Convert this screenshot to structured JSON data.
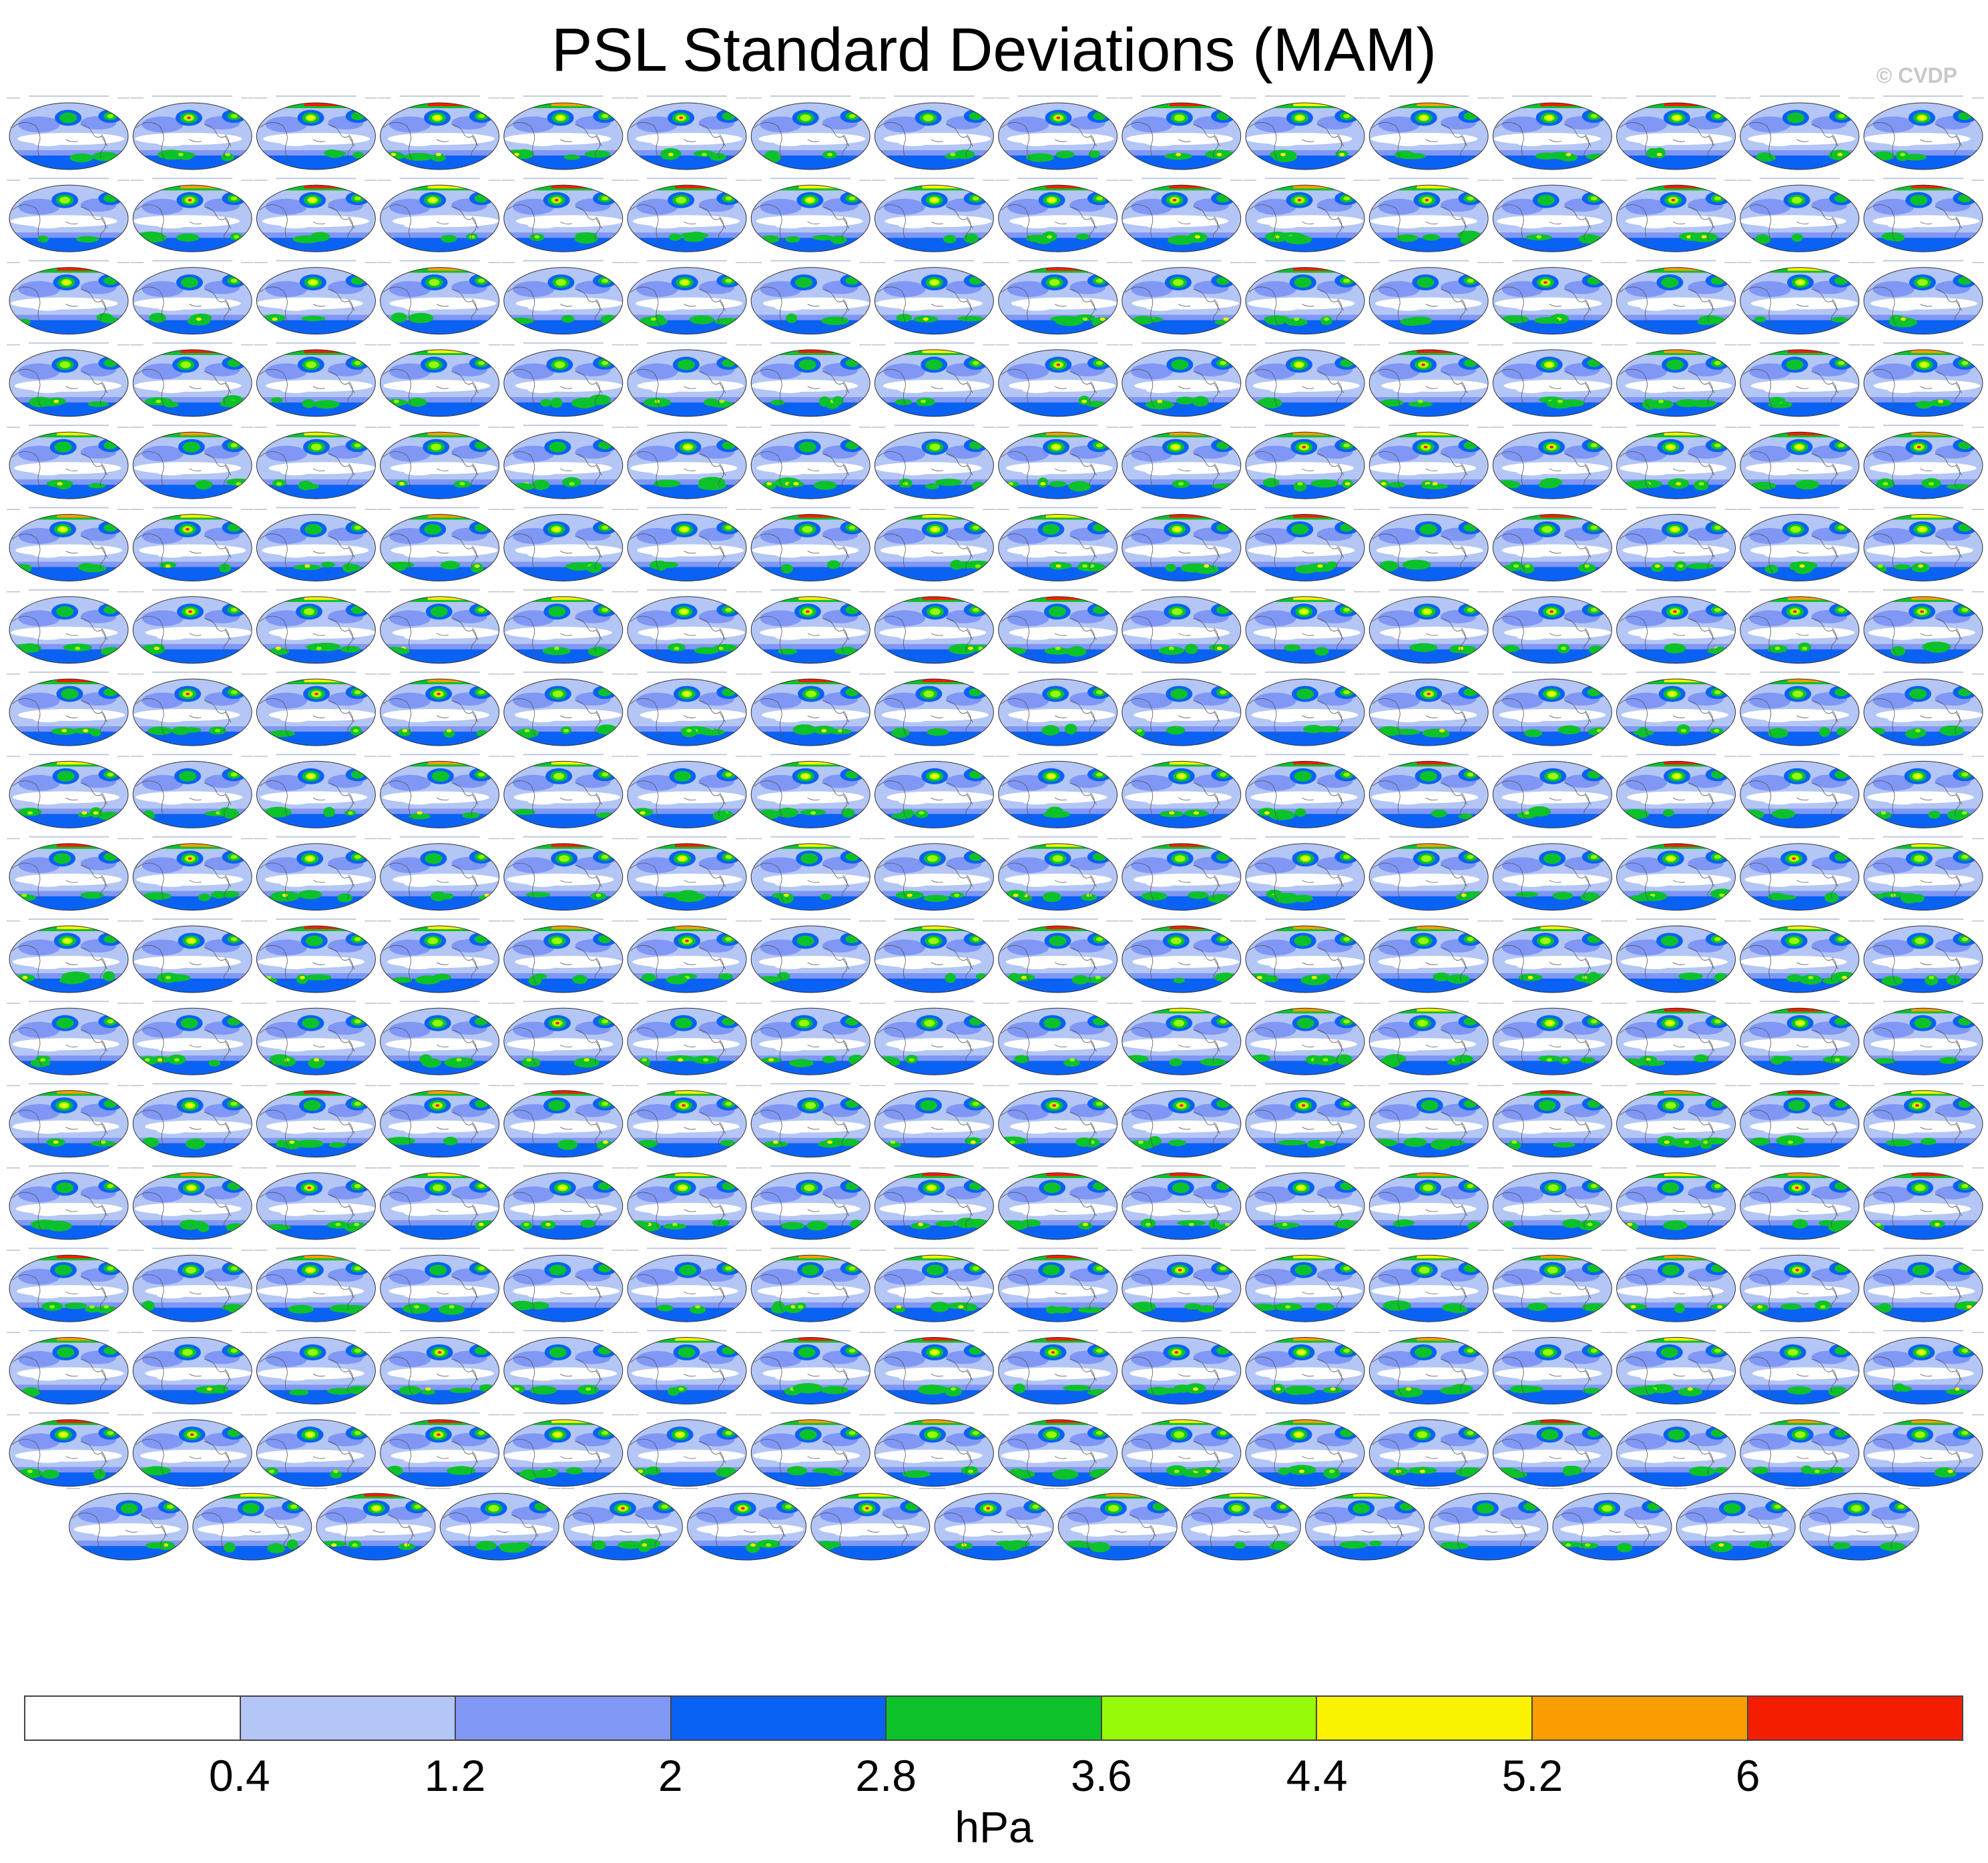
{
  "title": "PSL Standard Deviations (MAM)",
  "copyright": "© CVDP",
  "panel_grid": {
    "rows_full": 17,
    "columns": 16,
    "last_row_count": 15
  },
  "panel_colors": {
    "level_colors": [
      "#ffffff",
      "#b4c6f5",
      "#8097f5",
      "#0a62f5",
      "#0dc12b",
      "#97fb07",
      "#fbf200",
      "#fa9e00",
      "#f51d00"
    ],
    "coast": "#555555",
    "rim": "#333333"
  },
  "colorbar": {
    "colors": [
      "#ffffff",
      "#b4c6f5",
      "#8097f5",
      "#0a62f5",
      "#0dc12b",
      "#97fb07",
      "#fbf200",
      "#fa9e00",
      "#f51d00"
    ],
    "ticks": [
      "0.4",
      "1.2",
      "2",
      "2.8",
      "3.6",
      "4.4",
      "5.2",
      "6"
    ],
    "unit": "hPa"
  }
}
